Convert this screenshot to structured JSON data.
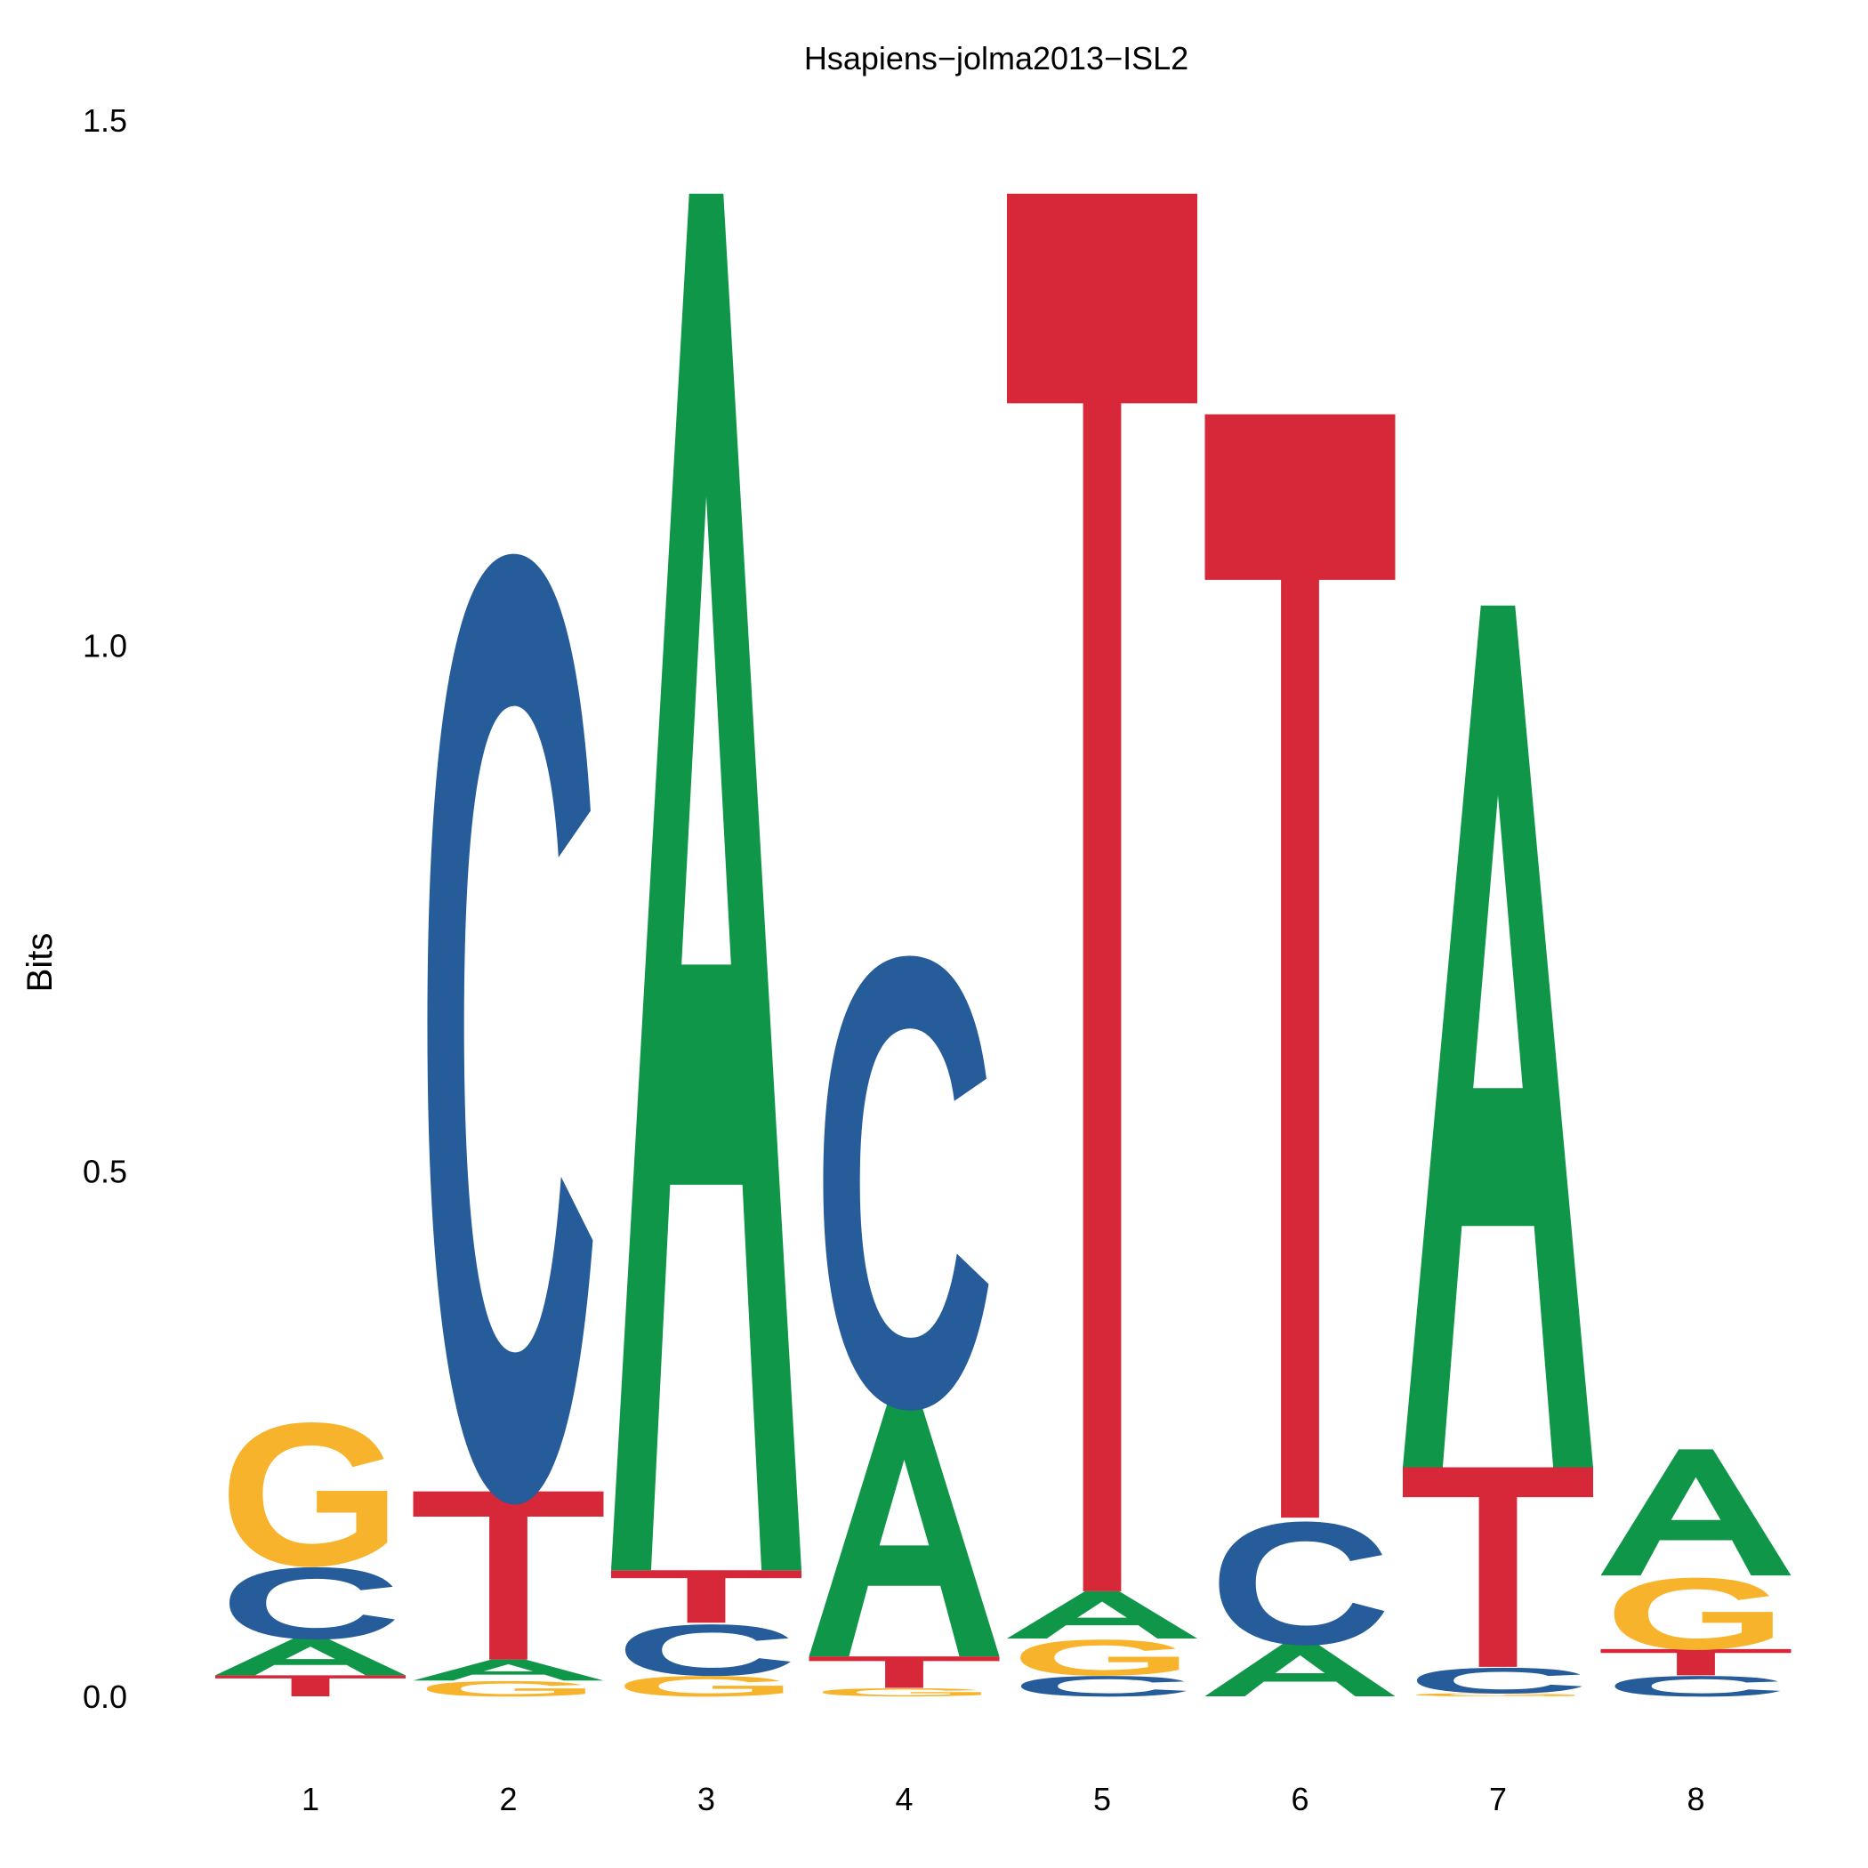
{
  "chart_data": {
    "type": "sequence-logo",
    "title": "Hsapiens−jolma2013−ISL2",
    "xlabel": "",
    "ylabel": "Bits",
    "ylim": [
      0,
      1.5
    ],
    "yticks": [
      "0.0",
      "0.5",
      "1.0",
      "1.5"
    ],
    "positions": [
      "1",
      "2",
      "3",
      "4",
      "5",
      "6",
      "7",
      "8"
    ],
    "grid": false,
    "colors": {
      "A": "#109648",
      "C": "#255C99",
      "G": "#F7B32B",
      "T": "#D62839"
    },
    "stacks": [
      [
        {
          "letter": "T",
          "bits": 0.02
        },
        {
          "letter": "A",
          "bits": 0.035
        },
        {
          "letter": "C",
          "bits": 0.07
        },
        {
          "letter": "G",
          "bits": 0.14
        }
      ],
      [
        {
          "letter": "G",
          "bits": 0.015
        },
        {
          "letter": "A",
          "bits": 0.02
        },
        {
          "letter": "T",
          "bits": 0.16
        },
        {
          "letter": "C",
          "bits": 0.92
        }
      ],
      [
        {
          "letter": "G",
          "bits": 0.02
        },
        {
          "letter": "C",
          "bits": 0.05
        },
        {
          "letter": "T",
          "bits": 0.05
        },
        {
          "letter": "A",
          "bits": 1.31
        }
      ],
      [
        {
          "letter": "G",
          "bits": 0.008
        },
        {
          "letter": "T",
          "bits": 0.03
        },
        {
          "letter": "A",
          "bits": 0.24
        },
        {
          "letter": "C",
          "bits": 0.44
        }
      ],
      [
        {
          "letter": "C",
          "bits": 0.02
        },
        {
          "letter": "G",
          "bits": 0.035
        },
        {
          "letter": "A",
          "bits": 0.045
        },
        {
          "letter": "T",
          "bits": 1.33
        }
      ],
      [
        {
          "letter": "A",
          "bits": 0.05
        },
        {
          "letter": "C",
          "bits": 0.12
        },
        {
          "letter": "T",
          "bits": 1.05
        }
      ],
      [
        {
          "letter": "G",
          "bits": 0.003
        },
        {
          "letter": "C",
          "bits": 0.025
        },
        {
          "letter": "T",
          "bits": 0.19
        },
        {
          "letter": "A",
          "bits": 0.82
        }
      ],
      [
        {
          "letter": "C",
          "bits": 0.02
        },
        {
          "letter": "T",
          "bits": 0.025
        },
        {
          "letter": "G",
          "bits": 0.07
        },
        {
          "letter": "A",
          "bits": 0.12
        }
      ]
    ]
  }
}
